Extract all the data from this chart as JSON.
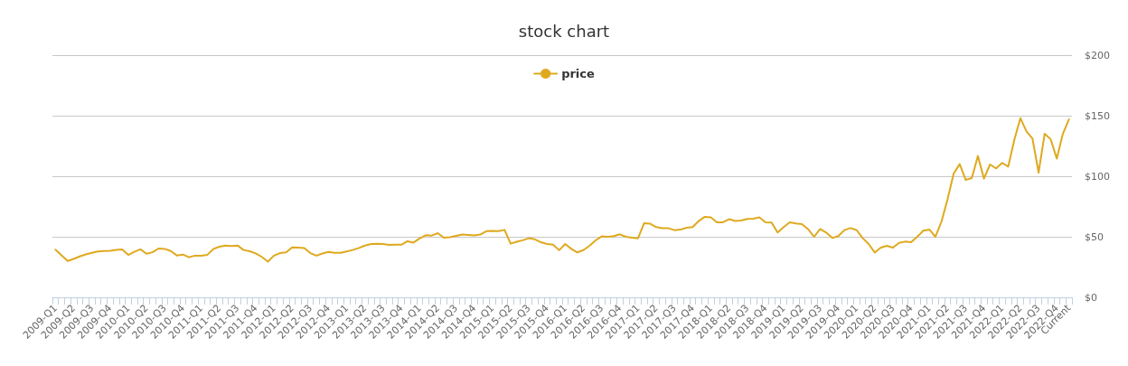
{
  "chart_data": {
    "type": "line",
    "title": "stock chart",
    "categories": [
      "2009-Q1",
      null,
      null,
      "2009-Q2",
      null,
      null,
      "2009-Q3",
      null,
      null,
      "2009-Q4",
      null,
      null,
      "2010-Q1",
      null,
      null,
      "2010-Q2",
      null,
      null,
      "2010-Q3",
      null,
      null,
      "2010-Q4",
      null,
      null,
      "2011-Q1",
      null,
      null,
      "2011-Q2",
      null,
      null,
      "2011-Q3",
      null,
      null,
      "2011-Q4",
      null,
      null,
      "2012-Q1",
      null,
      null,
      "2012-Q2",
      null,
      null,
      "2012-Q3",
      null,
      null,
      "2012-Q4",
      null,
      null,
      "2013-Q1",
      null,
      null,
      "2013-Q2",
      null,
      null,
      "2013-Q3",
      null,
      null,
      "2013-Q4",
      null,
      null,
      "2014-Q1",
      null,
      null,
      "2014-Q2",
      null,
      null,
      "2014-Q3",
      null,
      null,
      "2014-Q4",
      null,
      null,
      "2015-Q1",
      null,
      null,
      "2015-Q2",
      null,
      null,
      "2015-Q3",
      null,
      null,
      "2015-Q4",
      null,
      null,
      "2016-Q1",
      null,
      null,
      "2016-Q2",
      null,
      null,
      "2016-Q3",
      null,
      null,
      "2016-Q4",
      null,
      null,
      "2017-Q1",
      null,
      null,
      "2017-Q2",
      null,
      null,
      "2017-Q3",
      null,
      null,
      "2017-Q4",
      null,
      null,
      "2018-Q1",
      null,
      null,
      "2018-Q2",
      null,
      null,
      "2018-Q3",
      null,
      null,
      "2018-Q4",
      null,
      null,
      "2019-Q1",
      null,
      null,
      "2019-Q2",
      null,
      null,
      "2019-Q3",
      null,
      null,
      "2019-Q4",
      null,
      null,
      "2020-Q1",
      null,
      null,
      "2020-Q2",
      null,
      null,
      "2020-Q3",
      null,
      null,
      "2020-Q4",
      null,
      null,
      "2021-Q1",
      null,
      null,
      "2021-Q2",
      null,
      null,
      "2021-Q3",
      null,
      null,
      "2021-Q4",
      null,
      null,
      "2022-Q1",
      null,
      null,
      "2022-Q2",
      null,
      null,
      "2022-Q3",
      null,
      null,
      "2022-Q4",
      null,
      "Current"
    ],
    "series": [
      {
        "name": "price",
        "color": "#dfa91f",
        "values": [
          39.4,
          34.7,
          30.0,
          31.7,
          33.8,
          35.5,
          36.8,
          37.9,
          38.3,
          38.5,
          39.1,
          39.6,
          35.0,
          37.6,
          39.6,
          36.0,
          37.2,
          40.3,
          40.0,
          38.2,
          34.6,
          35.3,
          33.1,
          34.4,
          34.3,
          35.0,
          39.8,
          41.8,
          42.8,
          42.4,
          42.8,
          39.1,
          38.1,
          36.3,
          33.4,
          29.5,
          34.4,
          36.5,
          37.1,
          41.3,
          41.0,
          40.6,
          36.5,
          34.4,
          36.2,
          37.5,
          36.8,
          36.7,
          37.9,
          39.1,
          40.8,
          42.7,
          44.0,
          44.2,
          44.0,
          43.2,
          43.5,
          43.4,
          46.3,
          45.2,
          48.6,
          51.3,
          51.0,
          53.0,
          49.2,
          49.7,
          50.7,
          51.8,
          51.5,
          51.1,
          51.8,
          54.6,
          54.9,
          54.7,
          55.7,
          44.3,
          45.9,
          47.1,
          48.8,
          47.9,
          45.5,
          44.0,
          43.5,
          38.9,
          44.0,
          40.0,
          37.1,
          39.0,
          42.5,
          47.0,
          50.3,
          50.0,
          50.5,
          52.0,
          50.0,
          49.2,
          48.7,
          61.2,
          60.8,
          58.0,
          57.1,
          57.0,
          55.5,
          55.9,
          57.5,
          58.0,
          63.0,
          66.5,
          66.0,
          62.0,
          62.0,
          64.5,
          63.0,
          63.5,
          64.8,
          65.0,
          66.0,
          62.0,
          61.7,
          53.5,
          58.0,
          62.0,
          61.0,
          60.4,
          56.4,
          50.0,
          56.4,
          53.5,
          49.0,
          50.5,
          55.5,
          57.2,
          55.6,
          49.0,
          44.0,
          37.0,
          41.0,
          42.5,
          41.0,
          45.0,
          46.0,
          45.5,
          50.0,
          55.0,
          56.0,
          50.0,
          62.5,
          81.0,
          102.0,
          110.0,
          97.0,
          98.5,
          116.7,
          98.0,
          109.7,
          106.5,
          111.0,
          108.0,
          130.0,
          148.0,
          137.0,
          131.0,
          103.0,
          135.0,
          130.5,
          114.5,
          135.0,
          147.0
        ]
      }
    ],
    "ylim": [
      0,
      200
    ],
    "yticks": [
      {
        "value": 0,
        "label": "$0"
      },
      {
        "value": 50,
        "label": "$50"
      },
      {
        "value": 100,
        "label": "$100"
      },
      {
        "value": 150,
        "label": "$150"
      },
      {
        "value": 200,
        "label": "$200"
      }
    ],
    "grid": "y",
    "legend": "top",
    "marker": "none",
    "line_style": "solid"
  }
}
